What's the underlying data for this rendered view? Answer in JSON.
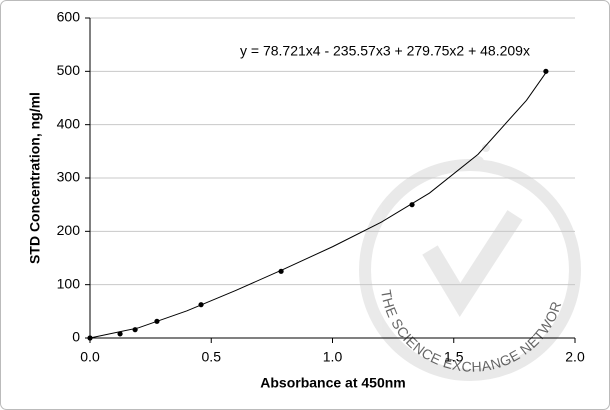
{
  "chart_data": {
    "type": "scatter",
    "annotation": "y = 78.721x4 - 235.57x3 + 279.75x2 + 48.209x",
    "xlabel": "Absorbance at 450nm",
    "ylabel": "STD Concentration, ng/ml",
    "watermark": "THE SCIENCE EXCHANGE NETWORK",
    "series": [
      {
        "type": "scatter",
        "color": "#000000",
        "x": [
          0,
          0.124,
          0.186,
          0.276,
          0.458,
          0.788,
          1.328,
          1.88
        ],
        "values": [
          0,
          7.8,
          15.6,
          31.25,
          62.5,
          125,
          250,
          500
        ]
      },
      {
        "type": "line",
        "color": "#000000",
        "x": [
          0,
          0.2,
          0.4,
          0.6,
          0.8,
          1.0,
          1.2,
          1.4,
          1.6,
          1.8,
          1.88
        ],
        "values": [
          0,
          19.07,
          50.98,
          88.96,
          129.24,
          171.11,
          216.87,
          271.82,
          344.31,
          445.71,
          497.46
        ]
      }
    ],
    "xlim": [
      0,
      2
    ],
    "ylim": [
      0,
      600
    ],
    "xticks": [
      {
        "value": 0,
        "label": "0.0"
      },
      0.5,
      {
        "value": 1,
        "label": "1.0"
      },
      1.5,
      {
        "value": 2,
        "label": "2.0"
      }
    ],
    "yticks": [
      0,
      100,
      200,
      300,
      400,
      500,
      600
    ],
    "grid": true
  }
}
